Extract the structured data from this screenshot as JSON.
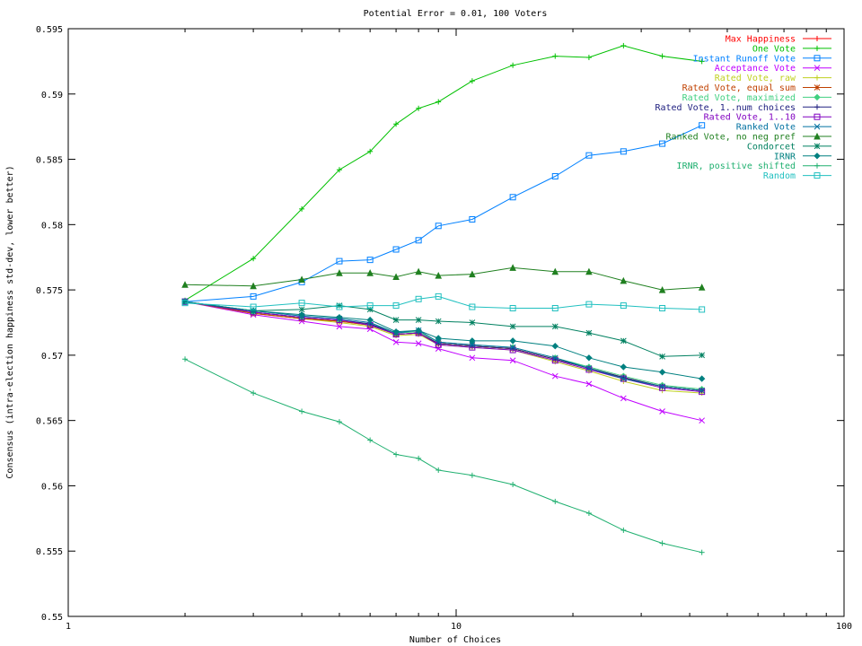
{
  "chart_data": {
    "type": "line",
    "title": "Potential Error = 0.01, 100 Voters",
    "xlabel": "Number of Choices",
    "ylabel": "Consensus (intra-election happiness std-dev, lower better)",
    "xscale": "log",
    "xlim": [
      1,
      100
    ],
    "ylim": [
      0.55,
      0.595
    ],
    "xticks": [
      1,
      10,
      100
    ],
    "xtick_labels": [
      "1",
      "10",
      "100"
    ],
    "yticks": [
      0.55,
      0.555,
      0.56,
      0.565,
      0.57,
      0.575,
      0.58,
      0.585,
      0.59,
      0.595
    ],
    "ytick_labels": [
      "0.55",
      "0.555",
      "0.56",
      "0.565",
      "0.57",
      "0.575",
      "0.58",
      "0.585",
      "0.59",
      "0.595"
    ],
    "grid": false,
    "legend_position": "top-right",
    "x": [
      2,
      3,
      4,
      5,
      6,
      7,
      8,
      9,
      11,
      14,
      18,
      22,
      27,
      34,
      43
    ],
    "series": [
      {
        "name": "Max Happiness",
        "color": "#ff0000",
        "marker": "plus",
        "values": [
          0.5741,
          0.5732,
          0.5728,
          0.5726,
          0.5723,
          0.5716,
          0.5717,
          0.5709,
          0.5707,
          0.5705,
          0.5697,
          0.569,
          0.5682,
          0.5676,
          0.5673
        ]
      },
      {
        "name": "One Vote",
        "color": "#00c000",
        "marker": "plus",
        "values": [
          0.5742,
          0.5774,
          0.5812,
          0.5842,
          0.5856,
          0.5877,
          0.5889,
          0.5894,
          0.591,
          0.5922,
          0.5929,
          0.5928,
          0.5937,
          0.5929,
          0.5925
        ]
      },
      {
        "name": "Instant Runoff Vote",
        "color": "#0080ff",
        "marker": "square",
        "values": [
          0.5741,
          0.5745,
          0.5756,
          0.5772,
          0.5773,
          0.5781,
          0.5788,
          0.5799,
          0.5804,
          0.5821,
          0.5837,
          0.5853,
          0.5856,
          0.5862,
          0.5876
        ]
      },
      {
        "name": "Acceptance Vote",
        "color": "#c000ff",
        "marker": "x",
        "values": [
          0.5741,
          0.5731,
          0.5726,
          0.5722,
          0.572,
          0.571,
          0.5709,
          0.5705,
          0.5698,
          0.5696,
          0.5684,
          0.5678,
          0.5667,
          0.5657,
          0.565
        ]
      },
      {
        "name": "Rated Vote, raw",
        "color": "#c0d020",
        "marker": "plus",
        "values": [
          0.5741,
          0.5732,
          0.5728,
          0.5725,
          0.5722,
          0.5715,
          0.5716,
          0.5708,
          0.5706,
          0.5704,
          0.5695,
          0.5688,
          0.568,
          0.5673,
          0.5671
        ]
      },
      {
        "name": "Rated Vote, equal sum",
        "color": "#c04000",
        "marker": "star",
        "values": [
          0.5741,
          0.5732,
          0.5728,
          0.5726,
          0.5723,
          0.5716,
          0.5717,
          0.5709,
          0.5707,
          0.5705,
          0.5697,
          0.569,
          0.5683,
          0.5676,
          0.5673
        ]
      },
      {
        "name": "Rated Vote, maximized",
        "color": "#40d080",
        "marker": "diamond",
        "values": [
          0.5741,
          0.5733,
          0.5729,
          0.5727,
          0.5724,
          0.5717,
          0.5718,
          0.571,
          0.5708,
          0.5706,
          0.5698,
          0.5691,
          0.5684,
          0.5677,
          0.5674
        ]
      },
      {
        "name": "Rated Vote, 1..num choices",
        "color": "#202080",
        "marker": "plus",
        "values": [
          0.5741,
          0.5733,
          0.5729,
          0.5727,
          0.5724,
          0.5716,
          0.5717,
          0.5709,
          0.5707,
          0.5705,
          0.5697,
          0.569,
          0.5683,
          0.5676,
          0.5673
        ]
      },
      {
        "name": "Rated Vote, 1..10",
        "color": "#8000c0",
        "marker": "square",
        "values": [
          0.5741,
          0.5733,
          0.5729,
          0.5727,
          0.5723,
          0.5716,
          0.5717,
          0.5708,
          0.5706,
          0.5704,
          0.5696,
          0.5689,
          0.5682,
          0.5675,
          0.5672
        ]
      },
      {
        "name": "Ranked Vote",
        "color": "#0070a0",
        "marker": "x",
        "values": [
          0.5741,
          0.5734,
          0.573,
          0.5728,
          0.5725,
          0.5717,
          0.5719,
          0.571,
          0.5708,
          0.5706,
          0.5698,
          0.569,
          0.5682,
          0.5676,
          0.5673
        ]
      },
      {
        "name": "Ranked Vote, no neg pref",
        "color": "#208020",
        "marker": "triangle",
        "values": [
          0.5754,
          0.5753,
          0.5758,
          0.5763,
          0.5763,
          0.576,
          0.5764,
          0.5761,
          0.5762,
          0.5767,
          0.5764,
          0.5764,
          0.5757,
          0.575,
          0.5752
        ]
      },
      {
        "name": "Condorcet",
        "color": "#008060",
        "marker": "star",
        "values": [
          0.5741,
          0.5734,
          0.5735,
          0.5738,
          0.5735,
          0.5727,
          0.5727,
          0.5726,
          0.5725,
          0.5722,
          0.5722,
          0.5717,
          0.5711,
          0.5699,
          0.57
        ]
      },
      {
        "name": "IRNR",
        "color": "#008080",
        "marker": "diamond",
        "values": [
          0.5741,
          0.5734,
          0.5731,
          0.5729,
          0.5727,
          0.5718,
          0.5719,
          0.5713,
          0.5711,
          0.5711,
          0.5707,
          0.5698,
          0.5691,
          0.5687,
          0.5682
        ]
      },
      {
        "name": "IRNR, positive shifted",
        "color": "#20b070",
        "marker": "plus",
        "values": [
          0.5697,
          0.5671,
          0.5657,
          0.5649,
          0.5635,
          0.5624,
          0.5621,
          0.5612,
          0.5608,
          0.5601,
          0.5588,
          0.5579,
          0.5566,
          0.5556,
          0.5549
        ]
      },
      {
        "name": "Random",
        "color": "#20c0c0",
        "marker": "square",
        "values": [
          0.574,
          0.5737,
          0.574,
          0.5737,
          0.5738,
          0.5738,
          0.5743,
          0.5745,
          0.5737,
          0.5736,
          0.5736,
          0.5739,
          0.5738,
          0.5736,
          0.5735
        ]
      }
    ]
  }
}
